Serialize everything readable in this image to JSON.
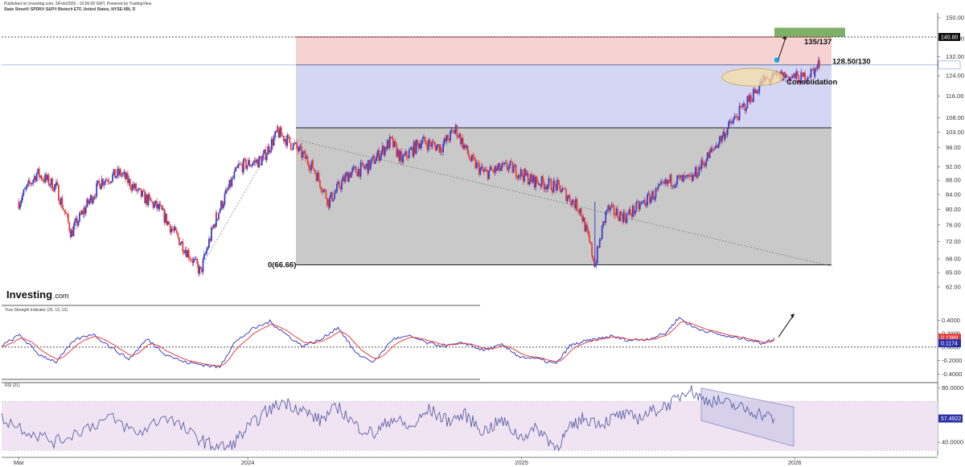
{
  "header": {
    "published": "Published on Investing.com, 3/Feb/2026 - 15:56:00 GMT, Powered by TradingView.",
    "instrument": "State Street® SPDR® S&P® Biotech ETF, United States, NYSE:XBI, D"
  },
  "colors": {
    "candle_up": "#3a3fc7",
    "candle_down": "#e8403a",
    "red_zone": "#f6d3d2",
    "blue_zone": "#d5d6f4",
    "gray_zone": "#c9c9c9",
    "target_box": "#7fb069",
    "ellipse": "#f4dfa6",
    "tsi_line": "#3a3fc7",
    "tsi_signal": "#e8403a",
    "rsi_line": "#5b5fa8",
    "rsi_band": "#f1e4f2"
  },
  "logo": {
    "main": "Investing",
    "suffix": ".com"
  },
  "annotations": {
    "target": "135/137",
    "resistance": "128.50/130",
    "consolidation": "Consolidation",
    "base": "0(66.66)"
  },
  "chart_data": [
    {
      "type": "candlestick",
      "panel": "price",
      "title": "State Street® SPDR® S&P® Biotech ETF, United States, NYSE:XBI, D",
      "x_labels": [
        "Mar",
        "2024",
        "2025",
        "2026"
      ],
      "ylim": [
        58,
        152
      ],
      "y_ticks": [
        62.0,
        65.0,
        68.0,
        72.0,
        76.0,
        80.0,
        84.0,
        88.0,
        92.0,
        98.0,
        103.0,
        108.0,
        116.0,
        124.0,
        132.0,
        140.0,
        150.0
      ],
      "price_path": [
        {
          "d": "2023-03-01",
          "v": 82
        },
        {
          "d": "2023-03-25",
          "v": 90
        },
        {
          "d": "2023-04-20",
          "v": 86
        },
        {
          "d": "2023-05-10",
          "v": 74
        },
        {
          "d": "2023-05-28",
          "v": 80
        },
        {
          "d": "2023-06-20",
          "v": 88
        },
        {
          "d": "2023-07-15",
          "v": 90
        },
        {
          "d": "2023-08-10",
          "v": 84
        },
        {
          "d": "2023-09-05",
          "v": 80
        },
        {
          "d": "2023-09-25",
          "v": 74
        },
        {
          "d": "2023-10-30",
          "v": 65
        },
        {
          "d": "2023-11-20",
          "v": 78
        },
        {
          "d": "2023-12-20",
          "v": 92
        },
        {
          "d": "2024-01-20",
          "v": 94
        },
        {
          "d": "2024-02-10",
          "v": 103
        },
        {
          "d": "2024-03-05",
          "v": 98
        },
        {
          "d": "2024-03-28",
          "v": 92
        },
        {
          "d": "2024-04-18",
          "v": 82
        },
        {
          "d": "2024-05-15",
          "v": 90
        },
        {
          "d": "2024-06-10",
          "v": 92
        },
        {
          "d": "2024-07-10",
          "v": 100
        },
        {
          "d": "2024-07-25",
          "v": 94
        },
        {
          "d": "2024-08-20",
          "v": 100
        },
        {
          "d": "2024-09-15",
          "v": 98
        },
        {
          "d": "2024-10-05",
          "v": 104
        },
        {
          "d": "2024-10-25",
          "v": 94
        },
        {
          "d": "2024-11-12",
          "v": 90
        },
        {
          "d": "2024-12-15",
          "v": 92
        },
        {
          "d": "2025-01-15",
          "v": 88
        },
        {
          "d": "2025-02-20",
          "v": 86
        },
        {
          "d": "2025-03-20",
          "v": 80
        },
        {
          "d": "2025-04-09",
          "v": 66.66
        },
        {
          "d": "2025-04-25",
          "v": 80
        },
        {
          "d": "2025-05-20",
          "v": 78
        },
        {
          "d": "2025-06-15",
          "v": 82
        },
        {
          "d": "2025-07-20",
          "v": 88
        },
        {
          "d": "2025-08-15",
          "v": 88
        },
        {
          "d": "2025-09-10",
          "v": 96
        },
        {
          "d": "2025-09-30",
          "v": 103
        },
        {
          "d": "2025-10-25",
          "v": 112
        },
        {
          "d": "2025-11-20",
          "v": 122
        },
        {
          "d": "2025-12-15",
          "v": 124
        },
        {
          "d": "2026-01-10",
          "v": 123
        },
        {
          "d": "2026-01-28",
          "v": 126
        },
        {
          "d": "2026-02-03",
          "v": 129
        }
      ],
      "levels": [
        {
          "label": "140.80",
          "value": 140.8
        },
        {
          "label": "128.46",
          "value": 128.46
        },
        {
          "label": "0(66.66)",
          "value": 66.66
        }
      ],
      "zones": [
        {
          "from": 128.5,
          "to": 140.8
        },
        {
          "from": 104.5,
          "to": 128.5
        },
        {
          "from": 66.66,
          "to": 104.5
        }
      ],
      "target_zone": [
        140.8,
        144
      ]
    },
    {
      "type": "line",
      "panel": "tsi",
      "title": "True Strength Indicator (25, 13, 13)",
      "y_ticks": [
        0.4,
        0.2,
        0.0,
        -0.2,
        -0.4
      ],
      "y_tick_labels": [
        "0.4000",
        "0.2000",
        "0.0000",
        "-0.2000",
        "-0.4000"
      ],
      "ylim": [
        -0.48,
        0.62
      ],
      "series": [
        {
          "key": "tsi",
          "value_label": "0.1174",
          "value": 0.1174
        },
        {
          "key": "signal",
          "value_label": "0.1389",
          "value": 0.1389
        }
      ]
    },
    {
      "type": "line",
      "panel": "rsi",
      "title": "RSI (21)",
      "y_ticks": [
        80,
        40
      ],
      "y_tick_labels": [
        "80.0000",
        "40.0000"
      ],
      "ylim": [
        30,
        84
      ],
      "band": [
        34,
        70
      ],
      "series": [
        {
          "key": "rsi",
          "value_label": "57.4922",
          "value": 57.4922
        }
      ]
    }
  ]
}
